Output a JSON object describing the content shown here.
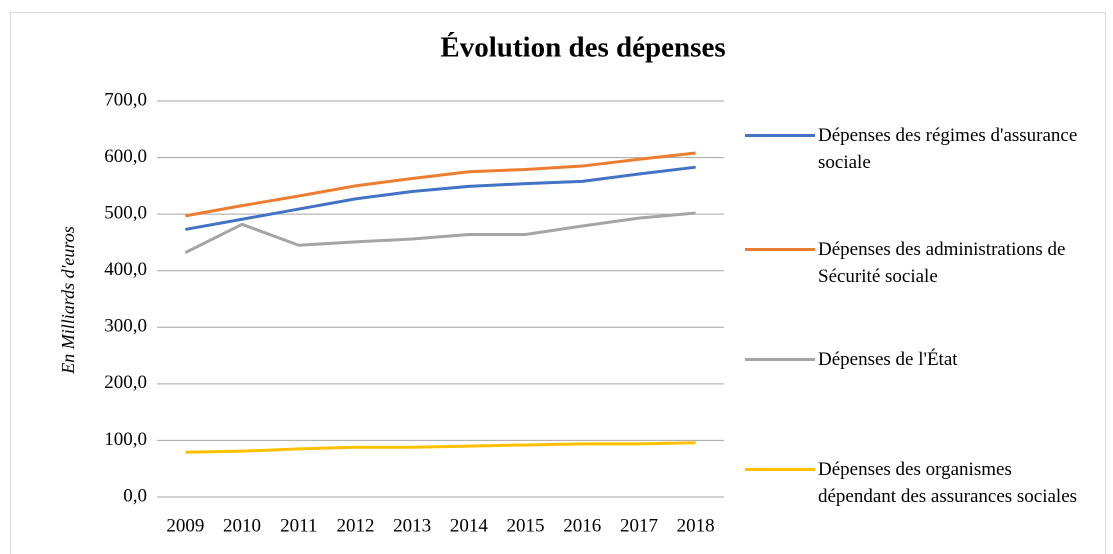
{
  "chart_data": {
    "type": "line",
    "title": "Évolution des dépenses",
    "y_label": "En Milliards d'euros",
    "categories": [
      "2009",
      "2010",
      "2011",
      "2012",
      "2013",
      "2014",
      "2015",
      "2016",
      "2017",
      "2018"
    ],
    "series": [
      {
        "name": "Dépenses des régimes d'assurance sociale",
        "color": "#4472c4",
        "values": [
          473,
          491,
          509,
          527,
          540,
          549,
          554,
          558,
          571,
          583
        ]
      },
      {
        "name": "Dépenses des administrations de Sécurité sociale",
        "color": "#ed7d31",
        "values": [
          497,
          515,
          532,
          550,
          563,
          575,
          579,
          585,
          597,
          608
        ]
      },
      {
        "name": "Dépenses de l'État",
        "color": "#a5a5a5",
        "values": [
          432,
          482,
          445,
          451,
          456,
          464,
          464,
          479,
          493,
          502
        ]
      },
      {
        "name": "Dépenses des organismes dépendant des assurances sociales",
        "color": "#ffc000",
        "values": [
          79,
          81,
          85,
          88,
          88,
          90,
          92,
          94,
          94,
          96
        ]
      }
    ],
    "ylim": [
      0,
      700
    ],
    "yticks": [
      {
        "value": 0,
        "label": "0,0"
      },
      {
        "value": 100,
        "label": "100,0"
      },
      {
        "value": 200,
        "label": "200,0"
      },
      {
        "value": 300,
        "label": "300,0"
      },
      {
        "value": 400,
        "label": "400,0"
      },
      {
        "value": 500,
        "label": "500,0"
      },
      {
        "value": 600,
        "label": "600,0"
      },
      {
        "value": 700,
        "label": "700,0"
      }
    ],
    "grid": true,
    "legend": "right"
  }
}
